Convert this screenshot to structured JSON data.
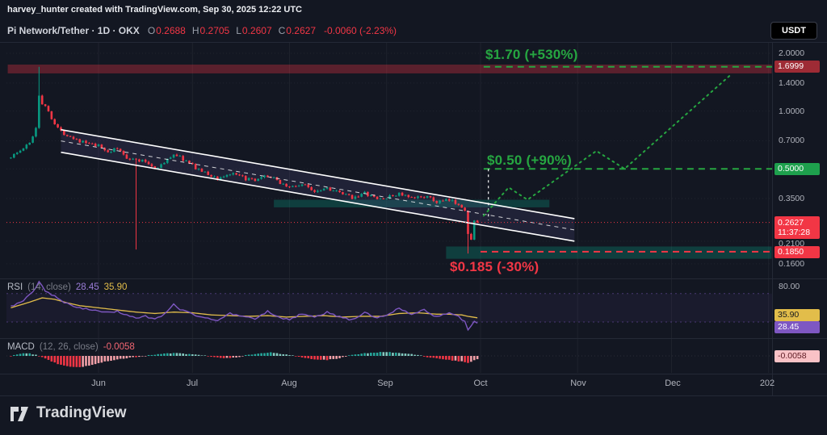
{
  "attribution": "harvey_hunter created with TradingView.com, Sep 30, 2025 12:22 UTC",
  "header": {
    "title": "Pi Network/Tether · 1D · OKX",
    "ohlc": [
      {
        "label": "O",
        "value": "0.2688"
      },
      {
        "label": "H",
        "value": "0.2705"
      },
      {
        "label": "L",
        "value": "0.2607"
      },
      {
        "label": "C",
        "value": "0.2627"
      }
    ],
    "change": "-0.0060 (-2.23%)",
    "currency_button": "USDT"
  },
  "annotations": {
    "upper_target": {
      "text": "$1.70 (+530%)",
      "price": 1.7
    },
    "mid_target": {
      "text": "$0.50 (+90%)",
      "price": 0.5
    },
    "lower_target": {
      "text": "$0.185 (-30%)",
      "price": 0.185
    }
  },
  "price_scale": {
    "ticks": [
      "2.0000",
      "1.4000",
      "1.0000",
      "0.7000",
      "0.3500",
      "0.2100",
      "0.1600"
    ],
    "level_labels": [
      {
        "text": "1.6999",
        "bg": "#9e2b35"
      },
      {
        "text": "0.5000",
        "bg": "#1ea04d"
      },
      {
        "text": "0.1850",
        "bg": "#f23645"
      }
    ],
    "last_price": {
      "text": "0.2627",
      "countdown": "11:37:28",
      "bg": "#f23645"
    }
  },
  "rsi_panel": {
    "name": "RSI",
    "params": "(14, close)",
    "value": "28.45",
    "ma_value": "35.90",
    "axis_label": "80.00",
    "badges": [
      {
        "text": "35.90",
        "bg": "#e2bd4a"
      },
      {
        "text": "28.45",
        "bg": "#7e57c2"
      }
    ]
  },
  "macd_panel": {
    "name": "MACD",
    "params": "(12, 26, close)",
    "value": "-0.0058",
    "badge": {
      "text": "-0.0058",
      "bg": "#f9c2c6"
    }
  },
  "time_axis": [
    "Jun",
    "Jul",
    "Aug",
    "Sep",
    "Oct",
    "Nov",
    "Dec",
    "202"
  ],
  "footer": {
    "brand": "TradingView"
  },
  "colors": {
    "background": "#131722",
    "up": "#089981",
    "down": "#f23645",
    "green": "#26a641",
    "red": "#f23645",
    "rsi": "#7e57c2",
    "rsi_ma": "#e2bd4a",
    "macd_up": "#26a69a",
    "macd_up_weak": "#82c9bf",
    "macd_down": "#f23645",
    "macd_down_weak": "#f2a0a8",
    "channel": "#ffffff"
  },
  "chart_data": {
    "type": "candlestick",
    "symbol": "Pi Network/Tether",
    "exchange": "OKX",
    "timeframe": "1D",
    "scale": "log",
    "last_ohlc": {
      "open": 0.2688,
      "high": 0.2705,
      "low": 0.2607,
      "close": 0.2627,
      "change": -0.006,
      "change_pct": -2.23
    },
    "current_price": 0.2627,
    "grid_prices": [
      2.0,
      1.4,
      1.0,
      0.7,
      0.5,
      0.35,
      0.21,
      0.16
    ],
    "month_day_index": [
      0,
      30,
      61,
      92,
      122,
      153,
      183,
      214
    ],
    "price_anchors": [
      [
        -28,
        0.58
      ],
      [
        -25,
        0.62
      ],
      [
        -22,
        0.68
      ],
      [
        -20,
        0.82
      ],
      [
        -19,
        1.22
      ],
      [
        -18,
        1.1
      ],
      [
        -16,
        1.0
      ],
      [
        -14,
        0.86
      ],
      [
        -12,
        0.78
      ],
      [
        -9,
        0.74
      ],
      [
        -6,
        0.7
      ],
      [
        -3,
        0.67
      ],
      [
        0,
        0.655
      ],
      [
        3,
        0.615
      ],
      [
        6,
        0.635
      ],
      [
        9,
        0.575
      ],
      [
        12,
        0.555
      ],
      [
        15,
        0.545
      ],
      [
        18,
        0.505
      ],
      [
        21,
        0.535
      ],
      [
        24,
        0.6
      ],
      [
        26,
        0.575
      ],
      [
        30,
        0.52
      ],
      [
        34,
        0.475
      ],
      [
        38,
        0.445
      ],
      [
        42,
        0.47
      ],
      [
        46,
        0.45
      ],
      [
        50,
        0.43
      ],
      [
        54,
        0.46
      ],
      [
        58,
        0.425
      ],
      [
        61,
        0.4
      ],
      [
        65,
        0.415
      ],
      [
        69,
        0.385
      ],
      [
        73,
        0.4
      ],
      [
        77,
        0.372
      ],
      [
        81,
        0.356
      ],
      [
        85,
        0.372
      ],
      [
        89,
        0.348
      ],
      [
        92,
        0.352
      ],
      [
        96,
        0.372
      ],
      [
        100,
        0.348
      ],
      [
        104,
        0.362
      ],
      [
        108,
        0.335
      ],
      [
        112,
        0.342
      ],
      [
        115,
        0.33
      ],
      [
        117,
        0.302
      ],
      [
        118,
        0.228
      ],
      [
        119,
        0.215
      ],
      [
        120,
        0.2688
      ],
      [
        121,
        0.2627
      ]
    ],
    "wick_events": [
      {
        "day": -19,
        "high": 1.7
      },
      {
        "day": 12,
        "low": 0.19
      },
      {
        "day": 118,
        "low": 0.181
      }
    ],
    "channel": {
      "from_day": -12,
      "to_day": 152,
      "upper_start": 0.8,
      "upper_end": 0.275,
      "lower_start": 0.61,
      "lower_end": 0.21,
      "fill": "rgba(126,110,200,0.13)",
      "line_color": "#ffffff"
    },
    "zones": [
      {
        "name": "resistance-zone",
        "price_low": 1.571,
        "price_high": 1.746,
        "from_day": -29,
        "to_day": 215,
        "fill": "rgba(242,54,69,0.32)"
      },
      {
        "name": "support-zone-mid",
        "price_low": 0.315,
        "price_high": 0.345,
        "from_day": 56,
        "to_day": 144,
        "fill": "rgba(8,153,129,0.30)"
      },
      {
        "name": "demand-zone",
        "price_low": 0.17,
        "price_high": 0.197,
        "from_day": 111,
        "to_day": 215,
        "fill": "rgba(8,153,129,0.30)"
      }
    ],
    "levels": [
      {
        "price": 1.6999,
        "color": "#26a641",
        "from_day": 123
      },
      {
        "price": 0.5,
        "color": "#26a641",
        "from_day": 123
      },
      {
        "price": 0.185,
        "color": "#f23645",
        "from_day": 122
      }
    ],
    "projection": [
      [
        123,
        0.285
      ],
      [
        131,
        0.4
      ],
      [
        137,
        0.345
      ],
      [
        159,
        0.62
      ],
      [
        168,
        0.5
      ],
      [
        202,
        1.55
      ]
    ],
    "connector": {
      "day": 124.5,
      "price_from": 0.5,
      "price_to": 0.27,
      "color": "rgba(255,255,255,0.9)"
    },
    "rsi": {
      "last": 28.45,
      "ma_last": 35.9,
      "bands": [
        70,
        30
      ],
      "anchors": [
        [
          -28,
          52
        ],
        [
          -24,
          60
        ],
        [
          -21,
          72
        ],
        [
          -19,
          86
        ],
        [
          -17,
          74
        ],
        [
          -14,
          66
        ],
        [
          -11,
          58
        ],
        [
          -8,
          53
        ],
        [
          -5,
          49
        ],
        [
          -2,
          47
        ],
        [
          2,
          43
        ],
        [
          6,
          45
        ],
        [
          9,
          40
        ],
        [
          12,
          36
        ],
        [
          15,
          38
        ],
        [
          18,
          34
        ],
        [
          21,
          41
        ],
        [
          24,
          55
        ],
        [
          26,
          48
        ],
        [
          30,
          41
        ],
        [
          34,
          36
        ],
        [
          38,
          32
        ],
        [
          42,
          42
        ],
        [
          46,
          38
        ],
        [
          50,
          34
        ],
        [
          54,
          45
        ],
        [
          58,
          36
        ],
        [
          61,
          33
        ],
        [
          65,
          42
        ],
        [
          69,
          36
        ],
        [
          73,
          44
        ],
        [
          77,
          37
        ],
        [
          81,
          33
        ],
        [
          85,
          43
        ],
        [
          89,
          36
        ],
        [
          92,
          40
        ],
        [
          96,
          50
        ],
        [
          100,
          41
        ],
        [
          104,
          47
        ],
        [
          108,
          37
        ],
        [
          112,
          43
        ],
        [
          115,
          38
        ],
        [
          117,
          30
        ],
        [
          118,
          20
        ],
        [
          119,
          25
        ],
        [
          120,
          31
        ],
        [
          121,
          28.45
        ]
      ],
      "ma_anchors": [
        [
          -28,
          50
        ],
        [
          -22,
          58
        ],
        [
          -18,
          64
        ],
        [
          -14,
          62
        ],
        [
          -10,
          57
        ],
        [
          -6,
          53
        ],
        [
          0,
          50
        ],
        [
          6,
          47
        ],
        [
          12,
          44
        ],
        [
          18,
          42
        ],
        [
          24,
          44
        ],
        [
          30,
          43
        ],
        [
          36,
          40
        ],
        [
          42,
          39
        ],
        [
          48,
          38
        ],
        [
          54,
          39
        ],
        [
          60,
          37
        ],
        [
          66,
          38
        ],
        [
          72,
          39
        ],
        [
          78,
          37
        ],
        [
          84,
          38
        ],
        [
          90,
          38
        ],
        [
          96,
          42
        ],
        [
          102,
          43
        ],
        [
          108,
          41
        ],
        [
          112,
          41
        ],
        [
          116,
          40
        ],
        [
          118,
          38
        ],
        [
          121,
          35.9
        ]
      ]
    },
    "macd": {
      "last": -0.0058,
      "anchors": [
        [
          -28,
          -0.001
        ],
        [
          -26,
          0.003
        ],
        [
          -23,
          0.005
        ],
        [
          -20,
          0.002
        ],
        [
          -17,
          -0.005
        ],
        [
          -13,
          -0.014
        ],
        [
          -9,
          -0.019
        ],
        [
          -6,
          -0.02
        ],
        [
          -2,
          -0.016
        ],
        [
          2,
          -0.01
        ],
        [
          6,
          -0.006
        ],
        [
          10,
          -0.003
        ],
        [
          14,
          -0.001
        ],
        [
          17,
          0.002
        ],
        [
          21,
          0.004
        ],
        [
          25,
          0.005
        ],
        [
          29,
          0.003
        ],
        [
          33,
          0.001
        ],
        [
          36,
          -0.002
        ],
        [
          40,
          -0.004
        ],
        [
          44,
          -0.003
        ],
        [
          47,
          0.001
        ],
        [
          51,
          0.004
        ],
        [
          55,
          0.006
        ],
        [
          58,
          0.004
        ],
        [
          62,
          0.001
        ],
        [
          65,
          -0.003
        ],
        [
          69,
          -0.006
        ],
        [
          73,
          -0.007
        ],
        [
          77,
          -0.004
        ],
        [
          80,
          0.001
        ],
        [
          84,
          0.004
        ],
        [
          88,
          0.006
        ],
        [
          92,
          0.007
        ],
        [
          96,
          0.005
        ],
        [
          100,
          0.003
        ],
        [
          103,
          0
        ],
        [
          106,
          -0.003
        ],
        [
          110,
          -0.006
        ],
        [
          113,
          -0.008
        ],
        [
          116,
          -0.01
        ],
        [
          118,
          -0.013
        ],
        [
          119,
          -0.011
        ],
        [
          120,
          -0.008
        ],
        [
          121,
          -0.0058
        ]
      ]
    }
  }
}
